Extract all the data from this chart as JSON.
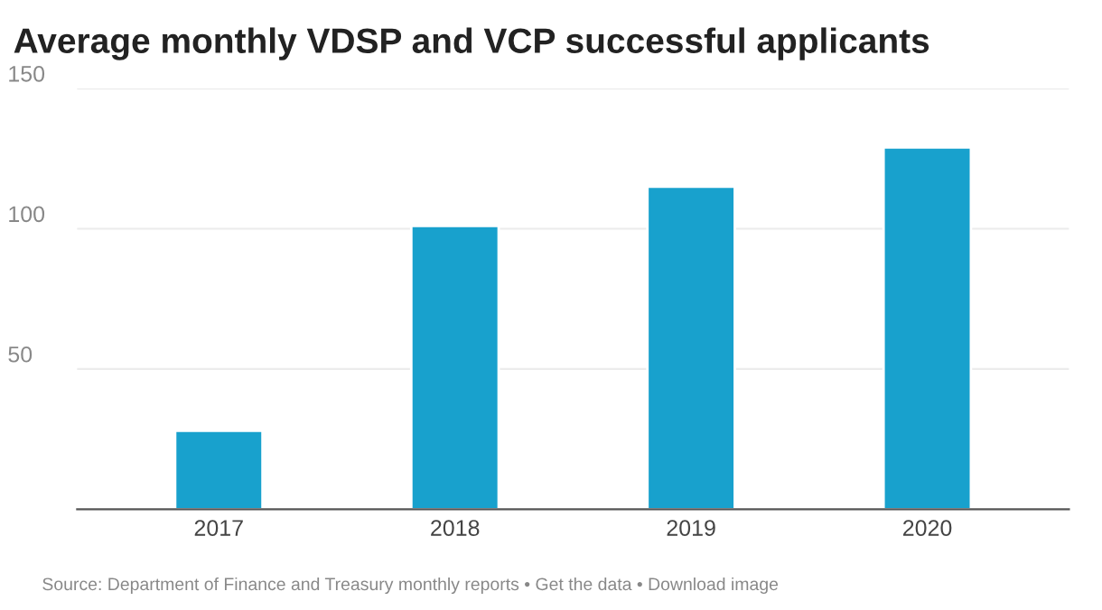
{
  "chart_data": {
    "type": "bar",
    "title": "Average monthly VDSP and VCP successful applicants",
    "categories": [
      "2017",
      "2018",
      "2019",
      "2020"
    ],
    "series": [
      {
        "color": "#18a1cd",
        "values": [
          28,
          101,
          115,
          129
        ]
      }
    ],
    "ylim": [
      0,
      150
    ],
    "yticks": [
      50,
      100,
      150
    ],
    "grid": "y",
    "legend": false,
    "annotations": [
      "Source: Department of Finance and Treasury monthly reports • Get the data • Download image"
    ]
  }
}
